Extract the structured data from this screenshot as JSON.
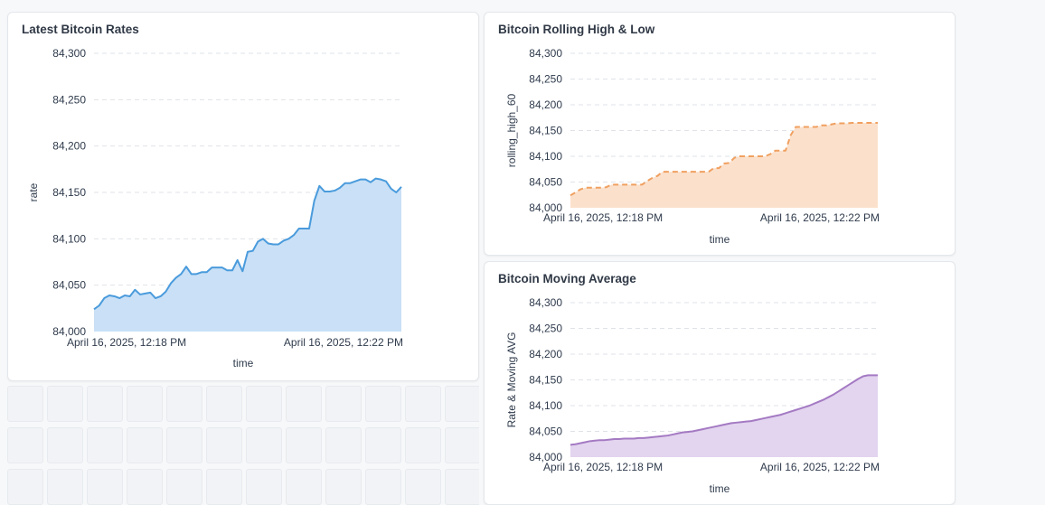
{
  "charts": {
    "rates": {
      "title": "Latest Bitcoin Rates",
      "chart_data": {
        "type": "area",
        "xlabel": "time",
        "ylabel": "rate",
        "ylim": [
          84000,
          84300
        ],
        "y_ticks": [
          "84,000",
          "84,050",
          "84,100",
          "84,150",
          "84,200",
          "84,250",
          "84,300"
        ],
        "x_ticks": [
          "April 16, 2025, 12:18 PM",
          "April 16, 2025, 12:22 PM"
        ],
        "grid": true,
        "color": "#4a9bdc",
        "fill": "#c9e0f6",
        "series": [
          {
            "values": [
              84024,
              84028,
              84036,
              84039,
              84038,
              84036,
              84039,
              84038,
              84045,
              84040,
              84041,
              84042,
              84036,
              84038,
              84043,
              84052,
              84058,
              84062,
              84070,
              84062,
              84062,
              84064,
              84064,
              84069,
              84069,
              84069,
              84066,
              84066,
              84077,
              84065,
              84086,
              84087,
              84097,
              84100,
              84095,
              84094,
              84094,
              84098,
              84100,
              84104,
              84111,
              84111,
              84111,
              84141,
              84157,
              84151,
              84151,
              84152,
              84155,
              84160,
              84160,
              84162,
              84164,
              84164,
              84161,
              84165,
              84164,
              84162,
              84154,
              84150,
              84156
            ]
          }
        ]
      }
    },
    "highlow": {
      "title": "Bitcoin Rolling High & Low",
      "chart_data": {
        "type": "area",
        "xlabel": "time",
        "ylabel": "rolling_high_60",
        "ylim": [
          84000,
          84300
        ],
        "y_ticks": [
          "84,000",
          "84,050",
          "84,100",
          "84,150",
          "84,200",
          "84,250",
          "84,300"
        ],
        "x_ticks": [
          "April 16, 2025, 12:18 PM",
          "April 16, 2025, 12:22 PM"
        ],
        "grid": true,
        "color": "#f0a060",
        "fill": "#fbe1cc",
        "dashed": true,
        "series": [
          {
            "values": [
              84024,
              84030,
              84036,
              84039,
              84039,
              84039,
              84039,
              84040,
              84045,
              84045,
              84045,
              84045,
              84045,
              84045,
              84045,
              84052,
              84058,
              84062,
              84070,
              84070,
              84070,
              84070,
              84070,
              84070,
              84070,
              84070,
              84070,
              84070,
              84077,
              84077,
              84086,
              84087,
              84097,
              84100,
              84100,
              84100,
              84100,
              84100,
              84100,
              84104,
              84111,
              84111,
              84111,
              84141,
              84157,
              84157,
              84157,
              84157,
              84157,
              84160,
              84160,
              84162,
              84164,
              84164,
              84164,
              84165,
              84165,
              84165,
              84165,
              84165,
              84165
            ]
          }
        ]
      }
    },
    "movavg": {
      "title": "Bitcoin Moving Average",
      "chart_data": {
        "type": "area",
        "xlabel": "time",
        "ylabel": "Rate & Moving AVG",
        "ylim": [
          84000,
          84300
        ],
        "y_ticks": [
          "84,000",
          "84,050",
          "84,100",
          "84,150",
          "84,200",
          "84,250",
          "84,300"
        ],
        "x_ticks": [
          "April 16, 2025, 12:18 PM",
          "April 16, 2025, 12:22 PM"
        ],
        "grid": true,
        "color": "#a47ac3",
        "fill": "#e3d4ef",
        "series": [
          {
            "values": [
              84024,
              84025,
              84027,
              84029,
              84031,
              84032,
              84033,
              84033,
              84034,
              84035,
              84035,
              84036,
              84036,
              84036,
              84037,
              84037,
              84038,
              84039,
              84040,
              84041,
              84042,
              84044,
              84046,
              84048,
              84049,
              84050,
              84052,
              84054,
              84056,
              84058,
              84060,
              84062,
              84064,
              84066,
              84067,
              84068,
              84069,
              84070,
              84072,
              84074,
              84076,
              84078,
              84080,
              84082,
              84085,
              84088,
              84091,
              84094,
              84097,
              84100,
              84104,
              84108,
              84112,
              84117,
              84122,
              84128,
              84134,
              84140,
              84146,
              84152,
              84157,
              84159,
              84159,
              84159
            ]
          }
        ]
      }
    }
  }
}
